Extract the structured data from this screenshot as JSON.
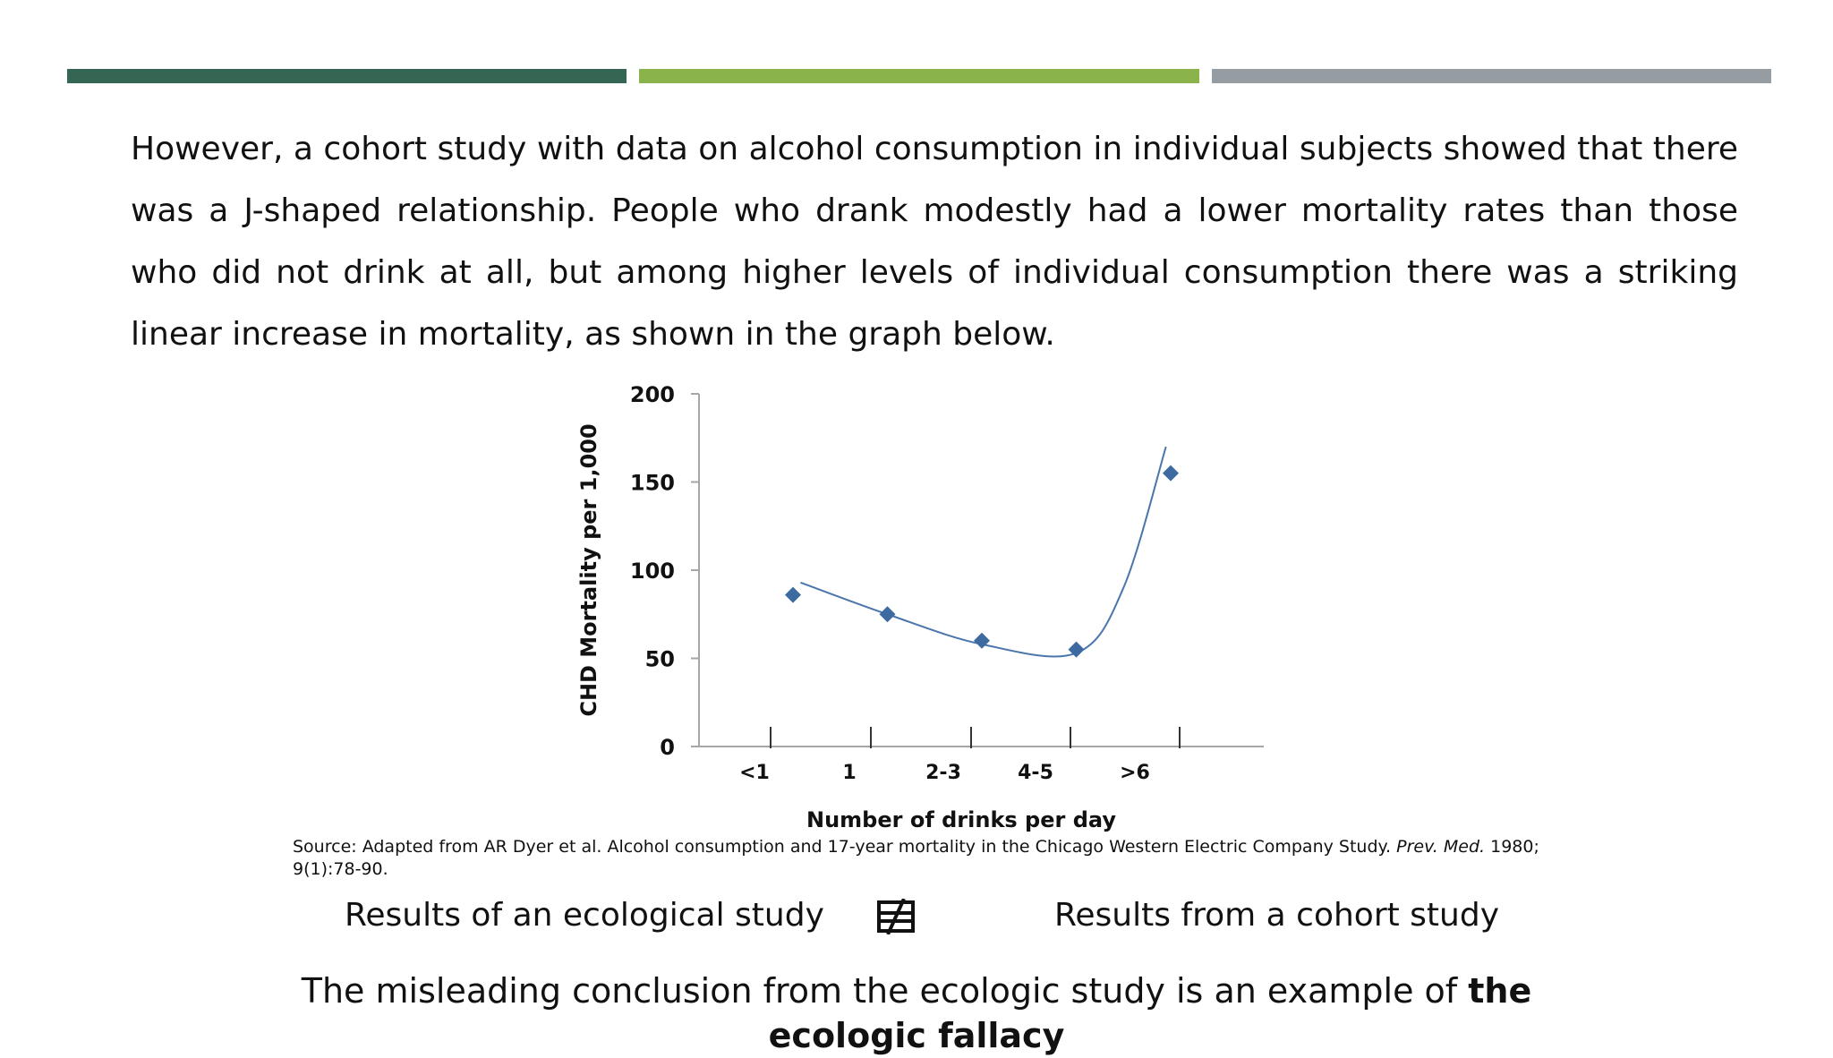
{
  "colors": {
    "band_1": "#356653",
    "band_2": "#8bb34b",
    "band_3": "#959ca2",
    "marker": "#3d6aa1",
    "curve": "#4a76ab",
    "axis": "#a6a6a6"
  },
  "intro_text": "However, a cohort study with data on alcohol consumption in individual subjects showed that there was a J-shaped relationship. People who drank modestly had a lower mortality rates than those who did not drink at all, but among higher levels of individual consumption there was a striking linear increase in mortality, as shown in the graph below.",
  "chart_data": {
    "type": "scatter",
    "xlabel": "Number of drinks per day",
    "ylabel": "CHD Mortality per 1,000",
    "ylim": [
      0,
      200
    ],
    "yticks": [
      0,
      50,
      100,
      150,
      200
    ],
    "categories": [
      "<1",
      "1",
      "2-3",
      "4-5",
      ">6"
    ],
    "series": [
      {
        "values": [
          86,
          75,
          60,
          55,
          155
        ]
      }
    ],
    "trend_line": {
      "type": "smooth curve",
      "x": [
        0.08,
        1.0,
        2.0,
        3.0,
        3.5,
        3.95
      ],
      "y": [
        93,
        75,
        58,
        53,
        90,
        170
      ]
    },
    "grid": false,
    "legend": "none"
  },
  "source": {
    "prefix": "Source: Adapted from AR Dyer et al. Alcohol consumption and 17-year mortality in the Chicago Western Electric Company Study. ",
    "journal": "Prev. Med.",
    "suffix": " 1980; 9(1):78-90."
  },
  "comparison": {
    "left": "Results of an ecological study",
    "right": "Results from a cohort study",
    "icon": "not-equal-icon"
  },
  "conclusion": {
    "text": "The misleading conclusion from the ecologic study is an example of ",
    "emphasis": "the ecologic fallacy"
  }
}
